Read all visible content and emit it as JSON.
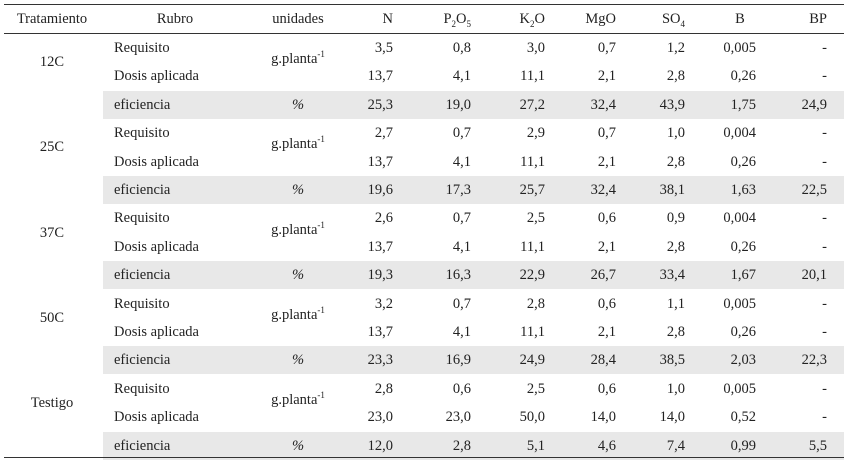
{
  "headers": {
    "tratamiento": "Tratamiento",
    "rubro": "Rubro",
    "unidades": "unidades",
    "n": "N",
    "p2o5": {
      "base": "P",
      "sub1": "2",
      "mid": "O",
      "sub2": "5"
    },
    "k2o": {
      "base": "K",
      "sub1": "2",
      "mid": "O"
    },
    "mgo": "MgO",
    "so4": {
      "base": "SO",
      "sub": "4"
    },
    "b": "B",
    "bp": "BP"
  },
  "unit_labels": {
    "base": "g.planta",
    "exponent": "-1",
    "percent": "%"
  },
  "groups": [
    {
      "name": "12C",
      "rows": [
        {
          "rubro": "Requisito",
          "values": [
            "3,5",
            "0,8",
            "3,0",
            "0,7",
            "1,2",
            "0,005",
            "-"
          ]
        },
        {
          "rubro": "Dosis aplicada",
          "values": [
            "13,7",
            "4,1",
            "11,1",
            "2,1",
            "2,8",
            "0,26",
            "-"
          ]
        },
        {
          "rubro": "eficiencia",
          "values": [
            "25,3",
            "19,0",
            "27,2",
            "32,4",
            "43,9",
            "1,75",
            "24,9"
          ]
        }
      ]
    },
    {
      "name": "25C",
      "rows": [
        {
          "rubro": "Requisito",
          "values": [
            "2,7",
            "0,7",
            "2,9",
            "0,7",
            "1,0",
            "0,004",
            "-"
          ]
        },
        {
          "rubro": "Dosis aplicada",
          "values": [
            "13,7",
            "4,1",
            "11,1",
            "2,1",
            "2,8",
            "0,26",
            "-"
          ]
        },
        {
          "rubro": "eficiencia",
          "values": [
            "19,6",
            "17,3",
            "25,7",
            "32,4",
            "38,1",
            "1,63",
            "22,5"
          ]
        }
      ]
    },
    {
      "name": "37C",
      "rows": [
        {
          "rubro": "Requisito",
          "values": [
            "2,6",
            "0,7",
            "2,5",
            "0,6",
            "0,9",
            "0,004",
            "-"
          ]
        },
        {
          "rubro": "Dosis aplicada",
          "values": [
            "13,7",
            "4,1",
            "11,1",
            "2,1",
            "2,8",
            "0,26",
            "-"
          ]
        },
        {
          "rubro": "eficiencia",
          "values": [
            "19,3",
            "16,3",
            "22,9",
            "26,7",
            "33,4",
            "1,67",
            "20,1"
          ]
        }
      ]
    },
    {
      "name": "50C",
      "rows": [
        {
          "rubro": "Requisito",
          "values": [
            "3,2",
            "0,7",
            "2,8",
            "0,6",
            "1,1",
            "0,005",
            "-"
          ]
        },
        {
          "rubro": "Dosis aplicada",
          "values": [
            "13,7",
            "4,1",
            "11,1",
            "2,1",
            "2,8",
            "0,26",
            "-"
          ]
        },
        {
          "rubro": "eficiencia",
          "values": [
            "23,3",
            "16,9",
            "24,9",
            "28,4",
            "38,5",
            "2,03",
            "22,3"
          ]
        }
      ]
    },
    {
      "name": "Testigo",
      "rows": [
        {
          "rubro": "Requisito",
          "values": [
            "2,8",
            "0,6",
            "2,5",
            "0,6",
            "1,0",
            "0,005",
            "-"
          ]
        },
        {
          "rubro": "Dosis aplicada",
          "values": [
            "23,0",
            "23,0",
            "50,0",
            "14,0",
            "14,0",
            "0,52",
            "-"
          ]
        },
        {
          "rubro": "eficiencia",
          "values": [
            "12,0",
            "2,8",
            "5,1",
            "4,6",
            "7,4",
            "0,99",
            "5,5"
          ]
        }
      ]
    }
  ]
}
